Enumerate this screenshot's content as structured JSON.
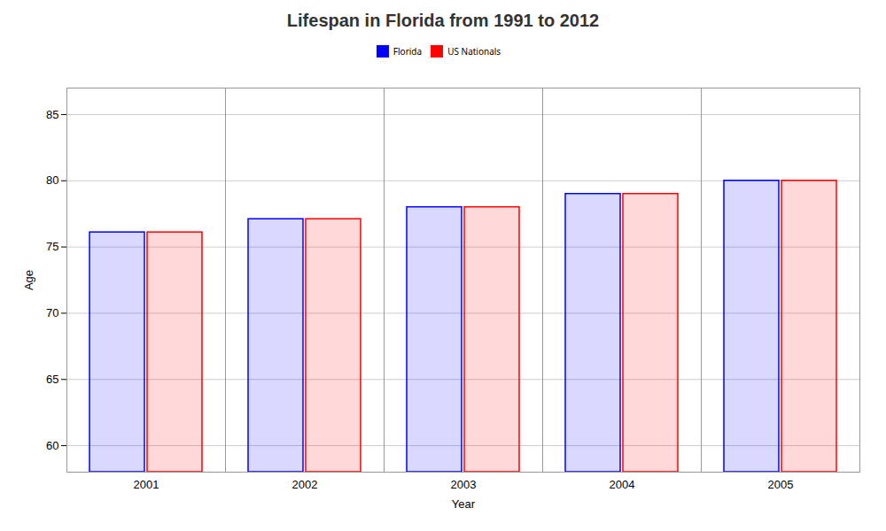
{
  "chart_data": {
    "type": "bar",
    "title": "Lifespan in Florida from 1991 to 2012",
    "xlabel": "Year",
    "ylabel": "Age",
    "categories": [
      "2001",
      "2002",
      "2003",
      "2004",
      "2005"
    ],
    "series": [
      {
        "name": "Florida",
        "color": "#0000ff",
        "values": [
          76.1,
          77.1,
          78.0,
          79.0,
          80.0
        ]
      },
      {
        "name": "US Nationals",
        "color": "#ff0000",
        "values": [
          76.1,
          77.1,
          78.0,
          79.0,
          80.0
        ]
      }
    ],
    "ylim": [
      58,
      87
    ],
    "yticks": [
      60,
      65,
      70,
      75,
      80,
      85
    ],
    "grid": true,
    "legend": "top"
  }
}
